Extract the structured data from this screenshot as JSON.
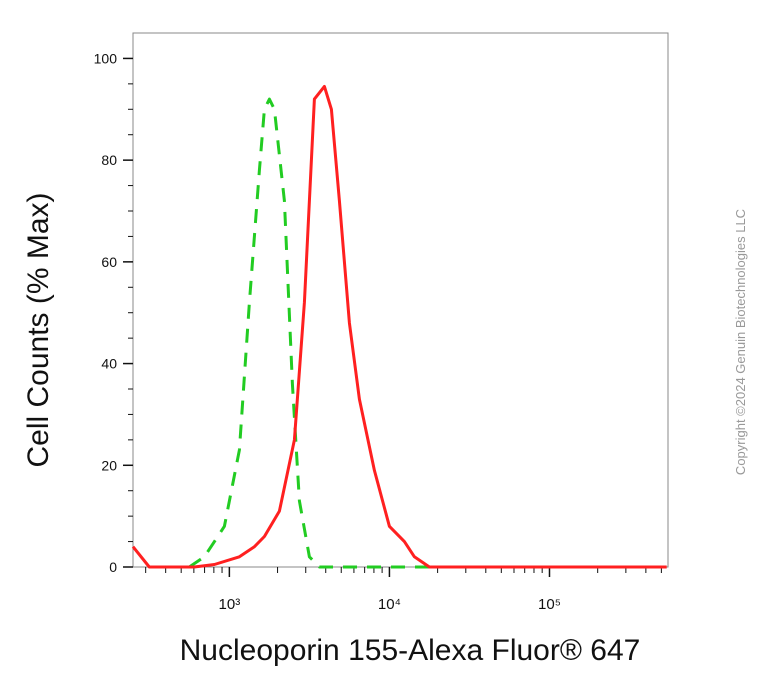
{
  "chart_data": {
    "type": "line",
    "x_label": "Nucleoporin 155-Alexa Fluor® 647",
    "y_label": "Cell Counts (% Max)",
    "watermark": "Copyright ©2024 Genuin Biotechnologies LLC",
    "xscale": "log",
    "xlim": [
      250,
      550000
    ],
    "xticks": [
      {
        "value": 1000,
        "label": "10³"
      },
      {
        "value": 10000,
        "label": "10⁴"
      },
      {
        "value": 100000,
        "label": "10⁵"
      }
    ],
    "ylim": [
      0,
      105
    ],
    "yticks": [
      0,
      20,
      40,
      60,
      80,
      100
    ],
    "series": [
      {
        "color": "#22cc22",
        "style": "dashed",
        "x": [
          562,
          698,
          931,
          1155,
          1334,
          1540,
          1655,
          1778,
          1911,
          2207,
          2477,
          2738,
          3162,
          3652,
          36520
        ],
        "values": [
          0,
          2,
          8,
          23,
          52,
          78,
          90,
          92,
          90,
          72,
          36,
          13,
          2,
          0,
          0
        ]
      },
      {
        "color": "#ff2020",
        "style": "solid",
        "x": [
          250,
          316,
          604,
          806,
          1155,
          1433,
          1655,
          2054,
          2548,
          2944,
          3398,
          3925,
          4340,
          4870,
          5623,
          6494,
          8058,
          10000,
          12410,
          14330,
          17780,
          540000
        ],
        "values": [
          4,
          0,
          0,
          0.5,
          2,
          4,
          6,
          11,
          25,
          52,
          92,
          94.5,
          90,
          72,
          48,
          33,
          19,
          8,
          5,
          2,
          0,
          0
        ]
      }
    ]
  }
}
